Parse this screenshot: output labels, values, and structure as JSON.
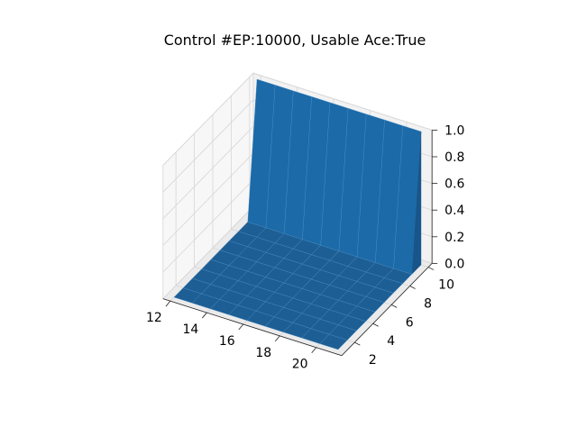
{
  "chart_data": {
    "type": "surface",
    "title": "Control #EP:10000, Usable Ace:True",
    "xlabel": "",
    "ylabel": "",
    "zlabel": "",
    "x": [
      12,
      13,
      14,
      15,
      16,
      17,
      18,
      19,
      20,
      21
    ],
    "y": [
      1,
      2,
      3,
      4,
      5,
      6,
      7,
      8,
      9,
      10
    ],
    "x_ticks": [
      "12",
      "14",
      "16",
      "18",
      "20"
    ],
    "y_ticks": [
      "2",
      "4",
      "6",
      "8",
      "10"
    ],
    "z_ticks": [
      "0.0",
      "0.2",
      "0.4",
      "0.6",
      "0.8",
      "1.0"
    ],
    "z": [
      [
        0,
        0,
        0,
        0,
        0,
        0,
        0,
        0,
        0,
        0
      ],
      [
        0,
        0,
        0,
        0,
        0,
        0,
        0,
        0,
        0,
        0
      ],
      [
        0,
        0,
        0,
        0,
        0,
        0,
        0,
        0,
        0,
        0
      ],
      [
        0,
        0,
        0,
        0,
        0,
        0,
        0,
        0,
        0,
        0
      ],
      [
        0,
        0,
        0,
        0,
        0,
        0,
        0,
        0,
        0,
        0
      ],
      [
        0,
        0,
        0,
        0,
        0,
        0,
        0,
        0,
        0,
        0
      ],
      [
        0,
        0,
        0,
        0,
        0,
        0,
        0,
        0,
        0,
        0
      ],
      [
        0,
        0,
        0,
        0,
        0,
        0,
        0,
        0,
        0,
        0
      ],
      [
        0,
        0,
        0,
        0,
        0,
        0,
        0,
        0,
        0,
        0
      ],
      [
        1,
        1,
        1,
        1,
        1,
        1,
        1,
        1,
        1,
        1
      ]
    ],
    "xlim": [
      12,
      21
    ],
    "ylim": [
      1,
      10
    ],
    "zlim": [
      0,
      1
    ],
    "grid": true,
    "colors": {
      "surface": "#1f77b4",
      "pane": "#f2f2f2",
      "grid": "#d6d6d6",
      "edge": "#4a8fc8"
    }
  }
}
